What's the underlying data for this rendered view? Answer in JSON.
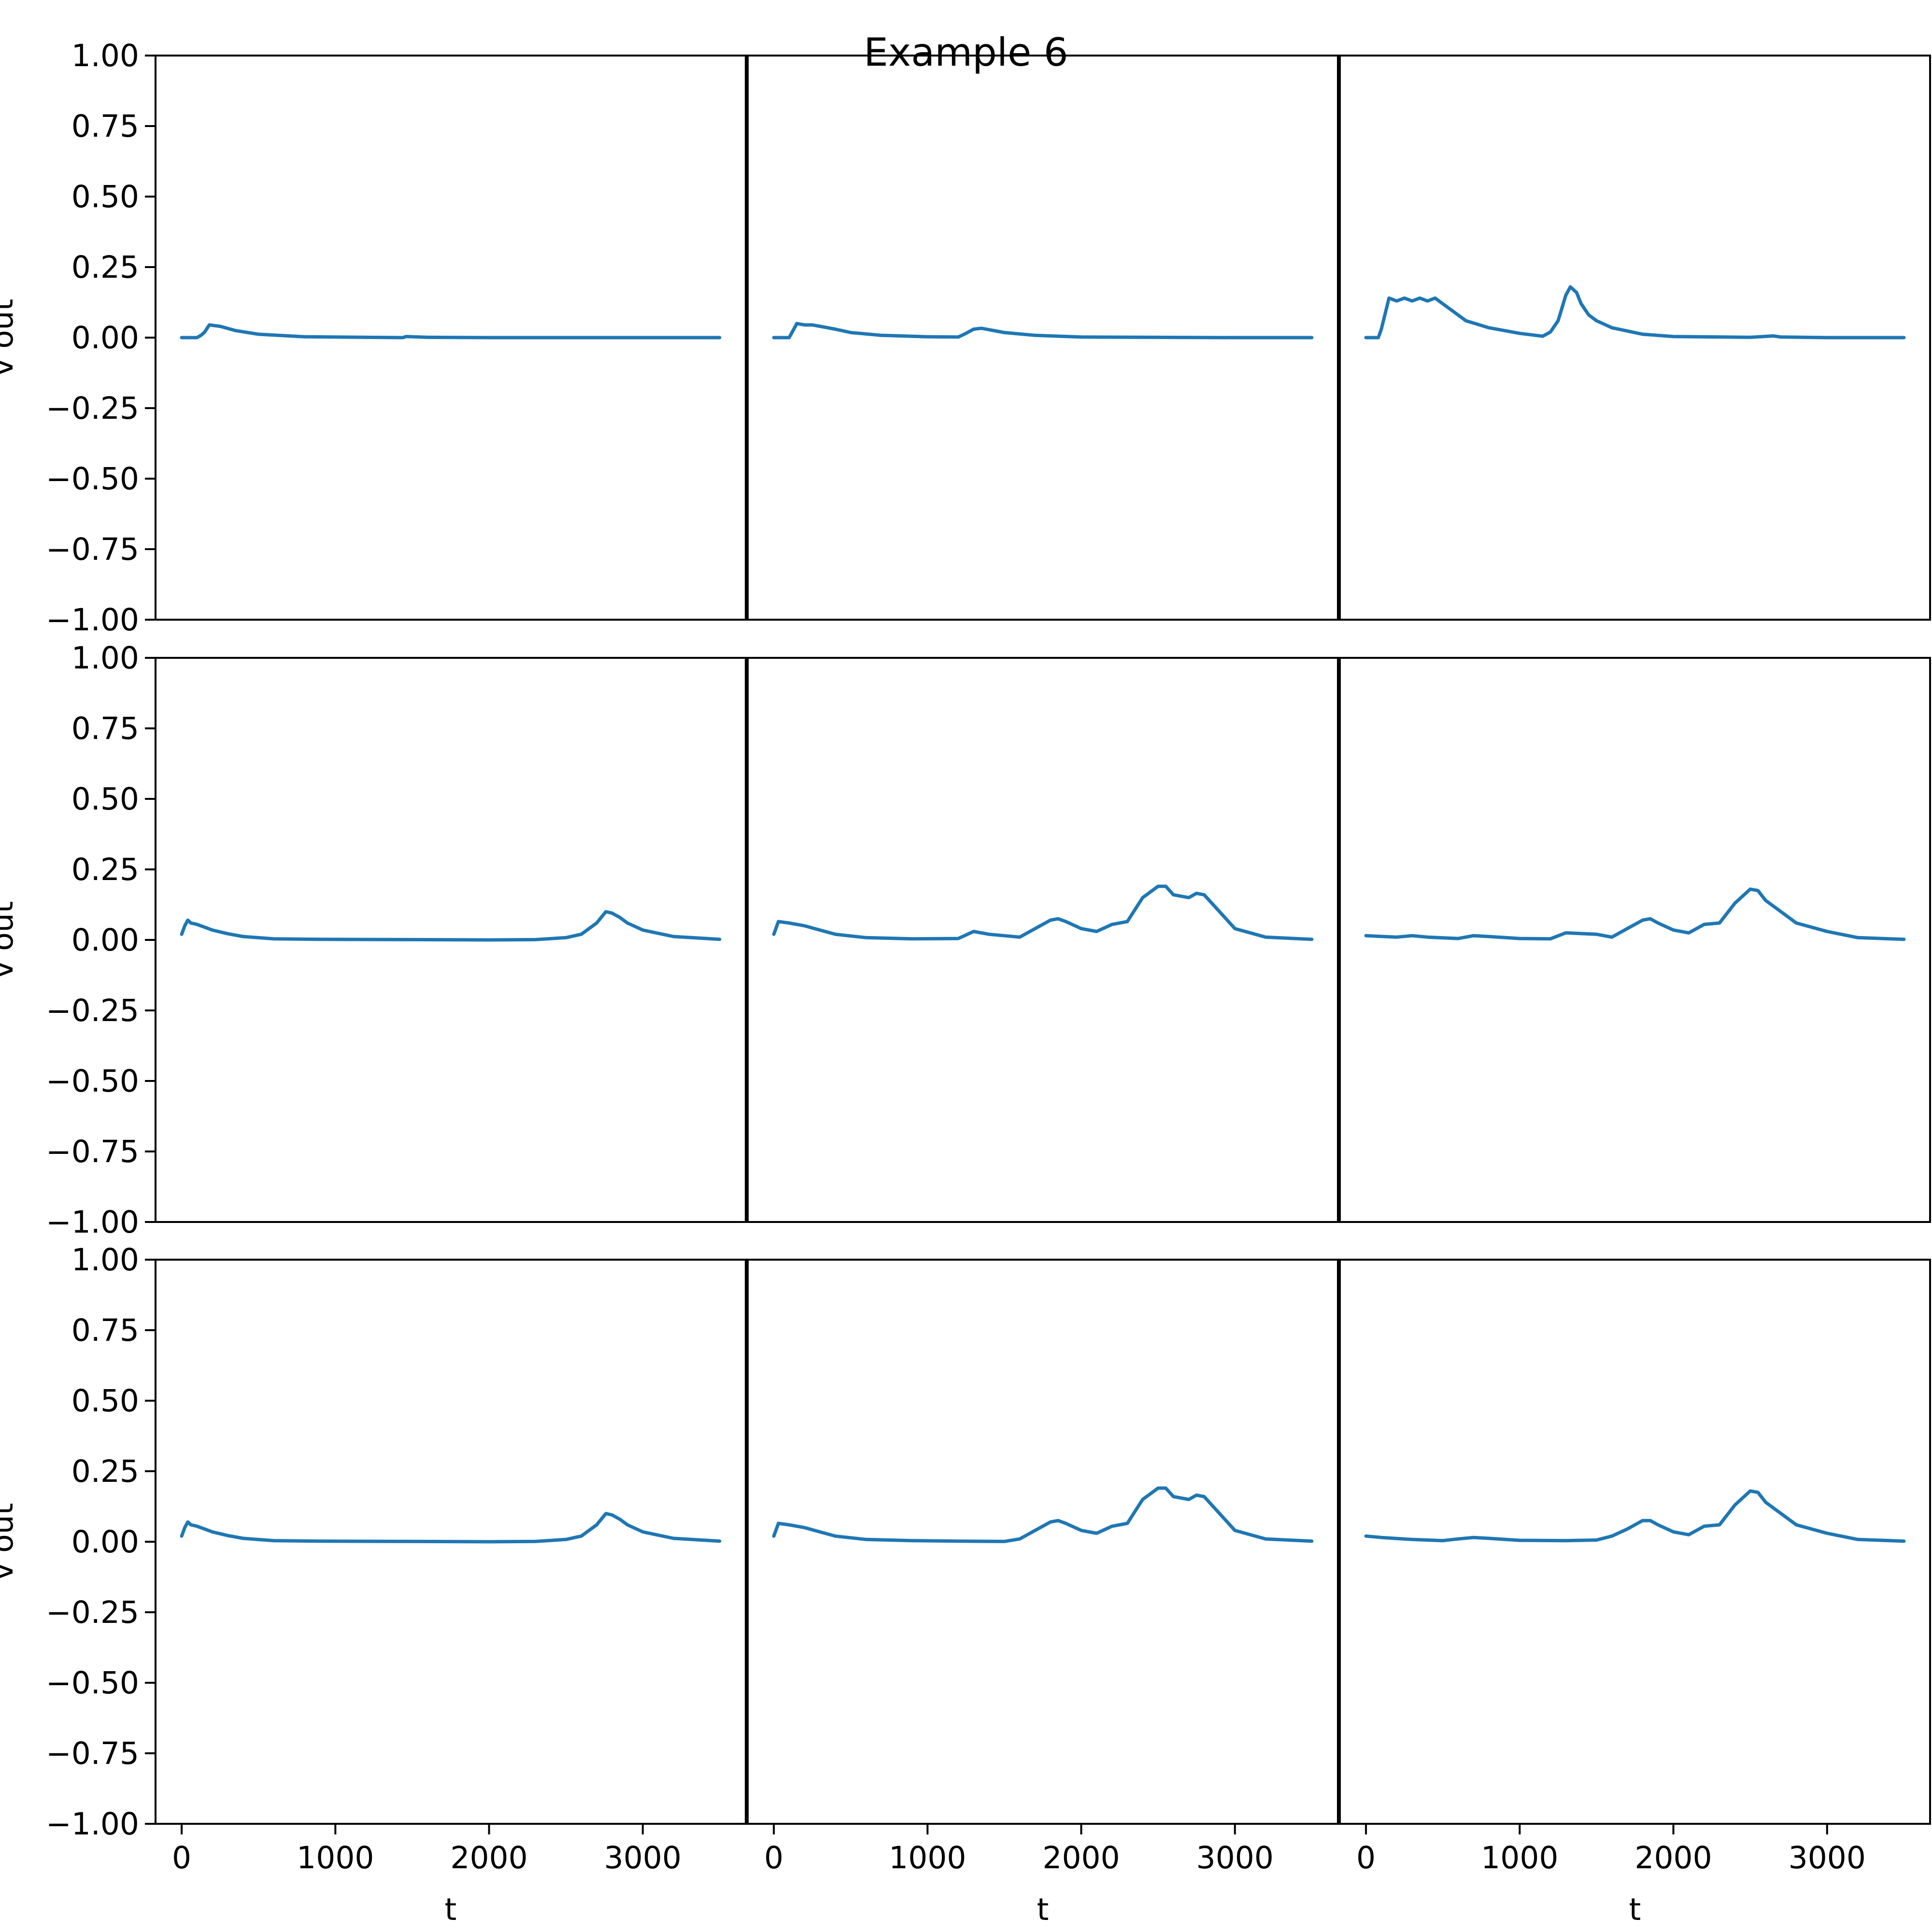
{
  "title": "Example 6",
  "style": {
    "line_color": "#1f77b4",
    "axis_color": "#000000",
    "background": "#ffffff"
  },
  "chart_data": {
    "type": "line",
    "grid": false,
    "layout": "3x3",
    "ylabel": "v out",
    "xlabel": "t",
    "xlim": [
      -170,
      3670
    ],
    "ylim": [
      -1.0,
      1.0
    ],
    "xticks": [
      0,
      1000,
      2000,
      3000
    ],
    "xtick_labels": [
      "0",
      "1000",
      "2000",
      "3000"
    ],
    "yticks": [
      1.0,
      0.75,
      0.5,
      0.25,
      0.0,
      -0.25,
      -0.5,
      -0.75,
      -1.0
    ],
    "ytick_labels": [
      "1.00",
      "0.75",
      "0.50",
      "0.25",
      "0.00",
      "−0.25",
      "−0.50",
      "−0.75",
      "−1.00"
    ],
    "panels": [
      {
        "row": 0,
        "col": 0,
        "series": [
          {
            "x": [
              0,
              100,
              130,
              150,
              180,
              250,
              350,
              500,
              800,
              1200,
              1440,
              1460,
              1600,
              2000,
              3000,
              3500
            ],
            "y": [
              0,
              0,
              0.01,
              0.02,
              0.045,
              0.04,
              0.025,
              0.012,
              0.003,
              0.001,
              0,
              0.004,
              0.001,
              0,
              0,
              0
            ]
          }
        ]
      },
      {
        "row": 0,
        "col": 1,
        "series": [
          {
            "x": [
              0,
              100,
              150,
              200,
              250,
              300,
              400,
              500,
              700,
              1000,
              1200,
              1250,
              1300,
              1350,
              1400,
              1500,
              1700,
              2000,
              3000,
              3500
            ],
            "y": [
              0,
              0,
              0.05,
              0.045,
              0.045,
              0.04,
              0.03,
              0.018,
              0.008,
              0.003,
              0.002,
              0.015,
              0.03,
              0.033,
              0.028,
              0.018,
              0.008,
              0.002,
              0,
              0
            ]
          }
        ]
      },
      {
        "row": 0,
        "col": 2,
        "series": [
          {
            "x": [
              0,
              80,
              100,
              150,
              200,
              250,
              300,
              350,
              400,
              450,
              500,
              550,
              650,
              800,
              1000,
              1150,
              1200,
              1250,
              1300,
              1330,
              1370,
              1400,
              1450,
              1500,
              1600,
              1800,
              2000,
              2500,
              2650,
              2700,
              3000,
              3500
            ],
            "y": [
              0,
              0,
              0.03,
              0.14,
              0.13,
              0.14,
              0.13,
              0.14,
              0.13,
              0.14,
              0.12,
              0.1,
              0.06,
              0.035,
              0.015,
              0.005,
              0.02,
              0.06,
              0.15,
              0.18,
              0.16,
              0.12,
              0.08,
              0.06,
              0.035,
              0.012,
              0.004,
              0.001,
              0.006,
              0.002,
              0,
              0
            ]
          }
        ]
      },
      {
        "row": 1,
        "col": 0,
        "series": [
          {
            "x": [
              0,
              20,
              40,
              60,
              100,
              150,
              200,
              300,
              400,
              600,
              900,
              1500,
              2000,
              2300,
              2500,
              2600,
              2700,
              2760,
              2800,
              2850,
              2900,
              3000,
              3200,
              3500
            ],
            "y": [
              0.02,
              0.05,
              0.07,
              0.06,
              0.055,
              0.045,
              0.035,
              0.022,
              0.012,
              0.004,
              0.002,
              0.001,
              0,
              0.001,
              0.008,
              0.02,
              0.06,
              0.1,
              0.095,
              0.08,
              0.06,
              0.035,
              0.012,
              0.002
            ]
          }
        ]
      },
      {
        "row": 1,
        "col": 1,
        "series": [
          {
            "x": [
              0,
              30,
              100,
              200,
              300,
              400,
              600,
              900,
              1200,
              1300,
              1400,
              1600,
              1700,
              1800,
              1850,
              1900,
              2000,
              2100,
              2200,
              2300,
              2400,
              2500,
              2550,
              2600,
              2700,
              2750,
              2800,
              2900,
              3000,
              3200,
              3500
            ],
            "y": [
              0.02,
              0.065,
              0.06,
              0.05,
              0.035,
              0.02,
              0.008,
              0.004,
              0.005,
              0.03,
              0.02,
              0.01,
              0.04,
              0.07,
              0.075,
              0.065,
              0.04,
              0.03,
              0.055,
              0.065,
              0.15,
              0.19,
              0.19,
              0.16,
              0.15,
              0.165,
              0.16,
              0.1,
              0.04,
              0.01,
              0.002
            ]
          }
        ]
      },
      {
        "row": 1,
        "col": 2,
        "series": [
          {
            "x": [
              0,
              200,
              300,
              400,
              600,
              700,
              800,
              1000,
              1200,
              1300,
              1500,
              1600,
              1700,
              1800,
              1850,
              1900,
              2000,
              2100,
              2200,
              2300,
              2400,
              2500,
              2550,
              2600,
              2700,
              2800,
              3000,
              3200,
              3500
            ],
            "y": [
              0.015,
              0.01,
              0.015,
              0.01,
              0.005,
              0.015,
              0.012,
              0.005,
              0.004,
              0.025,
              0.02,
              0.01,
              0.04,
              0.07,
              0.075,
              0.06,
              0.035,
              0.025,
              0.055,
              0.06,
              0.13,
              0.18,
              0.175,
              0.14,
              0.1,
              0.06,
              0.03,
              0.008,
              0.002
            ]
          }
        ]
      },
      {
        "row": 2,
        "col": 0,
        "series": [
          {
            "x": [
              0,
              20,
              40,
              60,
              100,
              150,
              200,
              300,
              400,
              600,
              900,
              1500,
              2000,
              2300,
              2500,
              2600,
              2700,
              2760,
              2800,
              2850,
              2900,
              3000,
              3200,
              3500
            ],
            "y": [
              0.02,
              0.05,
              0.07,
              0.06,
              0.055,
              0.045,
              0.035,
              0.022,
              0.012,
              0.004,
              0.002,
              0.001,
              0,
              0.001,
              0.008,
              0.02,
              0.06,
              0.1,
              0.095,
              0.08,
              0.06,
              0.035,
              0.012,
              0.002
            ]
          }
        ]
      },
      {
        "row": 2,
        "col": 1,
        "series": [
          {
            "x": [
              0,
              30,
              100,
              200,
              300,
              400,
              600,
              900,
              1200,
              1500,
              1600,
              1700,
              1800,
              1850,
              1900,
              2000,
              2100,
              2200,
              2300,
              2400,
              2500,
              2550,
              2600,
              2700,
              2750,
              2800,
              2900,
              3000,
              3200,
              3500
            ],
            "y": [
              0.02,
              0.065,
              0.06,
              0.05,
              0.035,
              0.02,
              0.008,
              0.004,
              0.002,
              0.001,
              0.01,
              0.04,
              0.07,
              0.075,
              0.065,
              0.04,
              0.03,
              0.055,
              0.065,
              0.15,
              0.19,
              0.19,
              0.16,
              0.15,
              0.165,
              0.16,
              0.1,
              0.04,
              0.01,
              0.002
            ]
          }
        ]
      },
      {
        "row": 2,
        "col": 2,
        "series": [
          {
            "x": [
              0,
              100,
              300,
              500,
              600,
              700,
              800,
              1000,
              1300,
              1500,
              1600,
              1700,
              1800,
              1850,
              1900,
              2000,
              2100,
              2200,
              2300,
              2400,
              2500,
              2550,
              2600,
              2700,
              2800,
              3000,
              3200,
              3500
            ],
            "y": [
              0.02,
              0.015,
              0.008,
              0.004,
              0.01,
              0.015,
              0.012,
              0.005,
              0.004,
              0.006,
              0.02,
              0.045,
              0.075,
              0.075,
              0.06,
              0.035,
              0.025,
              0.055,
              0.06,
              0.13,
              0.18,
              0.175,
              0.14,
              0.1,
              0.06,
              0.03,
              0.008,
              0.002
            ]
          }
        ]
      }
    ]
  }
}
